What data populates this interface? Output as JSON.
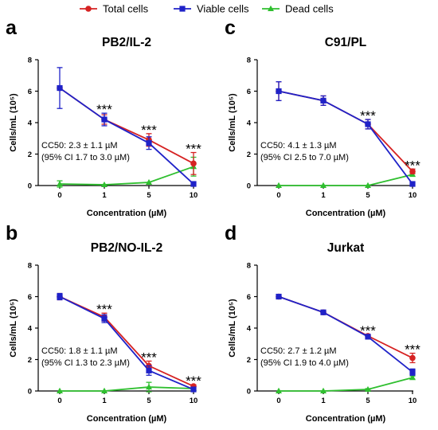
{
  "legend": [
    {
      "name": "Total cells",
      "color": "#d62222",
      "marker": "circle"
    },
    {
      "name": "Viable cells",
      "color": "#1f22c8",
      "marker": "square"
    },
    {
      "name": "Dead cells",
      "color": "#2fbf2f",
      "marker": "triangle"
    }
  ],
  "chart_data": [
    {
      "letter": "a",
      "type": "line",
      "title": "PB2/IL-2",
      "xlabel": "Concentration (µM)",
      "ylabel": "Cells/mL (10⁵)",
      "categories": [
        "0",
        "1",
        "5",
        "10"
      ],
      "ylim": [
        0,
        8
      ],
      "yticks": [
        "0",
        "2",
        "4",
        "6",
        "8"
      ],
      "grid": false,
      "series": [
        {
          "name": "Total cells",
          "values": [
            6.2,
            4.2,
            2.9,
            1.4
          ],
          "errors": [
            0,
            0.3,
            0.4,
            0.7
          ]
        },
        {
          "name": "Viable cells",
          "values": [
            6.2,
            4.2,
            2.7,
            0.1
          ],
          "errors": [
            1.3,
            0.4,
            0.4,
            0
          ]
        },
        {
          "name": "Dead cells",
          "values": [
            0.1,
            0.05,
            0.2,
            1.2
          ],
          "errors": [
            0.2,
            0,
            0,
            0.6
          ]
        }
      ],
      "significance": [
        {
          "category": "1",
          "label": "***"
        },
        {
          "category": "5",
          "label": "***"
        },
        {
          "category": "10",
          "label": "***"
        }
      ],
      "cc50": [
        "CC50: 2.3 ± 1.1 µM",
        "(95% CI 1.7 to 3.0 µM)"
      ]
    },
    {
      "letter": "c",
      "type": "line",
      "title": "C91/PL",
      "xlabel": "Concentration (µM)",
      "ylabel": "Cells/mL (10⁵)",
      "categories": [
        "0",
        "1",
        "5",
        "10"
      ],
      "ylim": [
        0,
        8
      ],
      "yticks": [
        "0",
        "2",
        "4",
        "6",
        "8"
      ],
      "grid": false,
      "series": [
        {
          "name": "Total cells",
          "values": [
            6.0,
            5.4,
            3.9,
            0.9
          ],
          "errors": [
            0.6,
            0.3,
            0.3,
            0.15
          ]
        },
        {
          "name": "Viable cells",
          "values": [
            6.0,
            5.4,
            3.9,
            0.1
          ],
          "errors": [
            0.6,
            0.3,
            0.3,
            0
          ]
        },
        {
          "name": "Dead cells",
          "values": [
            0,
            0,
            0,
            0.7
          ],
          "errors": [
            0,
            0,
            0,
            0.1
          ]
        }
      ],
      "significance": [
        {
          "category": "5",
          "label": "***"
        },
        {
          "category": "10",
          "label": "***"
        }
      ],
      "cc50": [
        "CC50: 4.1 ± 1.3 µM",
        "(95% CI 2.5 to 7.0 µM)"
      ]
    },
    {
      "letter": "b",
      "type": "line",
      "title": "PB2/NO-IL-2",
      "xlabel": "Concentration (µM)",
      "ylabel": "Cells/mL (10⁵)",
      "categories": [
        "0",
        "1",
        "5",
        "10"
      ],
      "ylim": [
        0,
        8
      ],
      "yticks": [
        "0",
        "2",
        "4",
        "6",
        "8"
      ],
      "grid": false,
      "series": [
        {
          "name": "Total cells",
          "values": [
            6.0,
            4.7,
            1.6,
            0.3
          ],
          "errors": [
            0.2,
            0.25,
            0.3,
            0.1
          ]
        },
        {
          "name": "Viable cells",
          "values": [
            6.0,
            4.6,
            1.3,
            0.1
          ],
          "errors": [
            0.2,
            0.25,
            0.3,
            0
          ]
        },
        {
          "name": "Dead cells",
          "values": [
            0,
            0,
            0.25,
            0.15
          ],
          "errors": [
            0,
            0,
            0.3,
            0.1
          ]
        }
      ],
      "significance": [
        {
          "category": "1",
          "label": "***"
        },
        {
          "category": "5",
          "label": "***"
        },
        {
          "category": "10",
          "label": "***"
        }
      ],
      "cc50": [
        "CC50: 1.8 ± 1.1 µM",
        "(95% CI 1.3 to 2.3 µM)"
      ]
    },
    {
      "letter": "d",
      "type": "line",
      "title": "Jurkat",
      "xlabel": "Concentration (µM)",
      "ylabel": "Cells/mL (10⁵)",
      "categories": [
        "0",
        "1",
        "5",
        "10"
      ],
      "ylim": [
        0,
        8
      ],
      "yticks": [
        "0",
        "2",
        "4",
        "6",
        "8"
      ],
      "grid": false,
      "series": [
        {
          "name": "Total cells",
          "values": [
            6.0,
            5.0,
            3.5,
            2.1
          ],
          "errors": [
            0.05,
            0.1,
            0.1,
            0.3
          ]
        },
        {
          "name": "Viable cells",
          "values": [
            6.0,
            5.0,
            3.45,
            1.2
          ],
          "errors": [
            0.05,
            0.1,
            0.1,
            0.2
          ]
        },
        {
          "name": "Dead cells",
          "values": [
            0,
            0,
            0.1,
            0.85
          ],
          "errors": [
            0,
            0,
            0.05,
            0.1
          ]
        }
      ],
      "significance": [
        {
          "category": "5",
          "label": "***"
        },
        {
          "category": "10",
          "label": "***"
        }
      ],
      "cc50": [
        "CC50: 2.7 ± 1.2 µM",
        "(95% CI 1.9 to 4.0 µM)"
      ]
    }
  ]
}
